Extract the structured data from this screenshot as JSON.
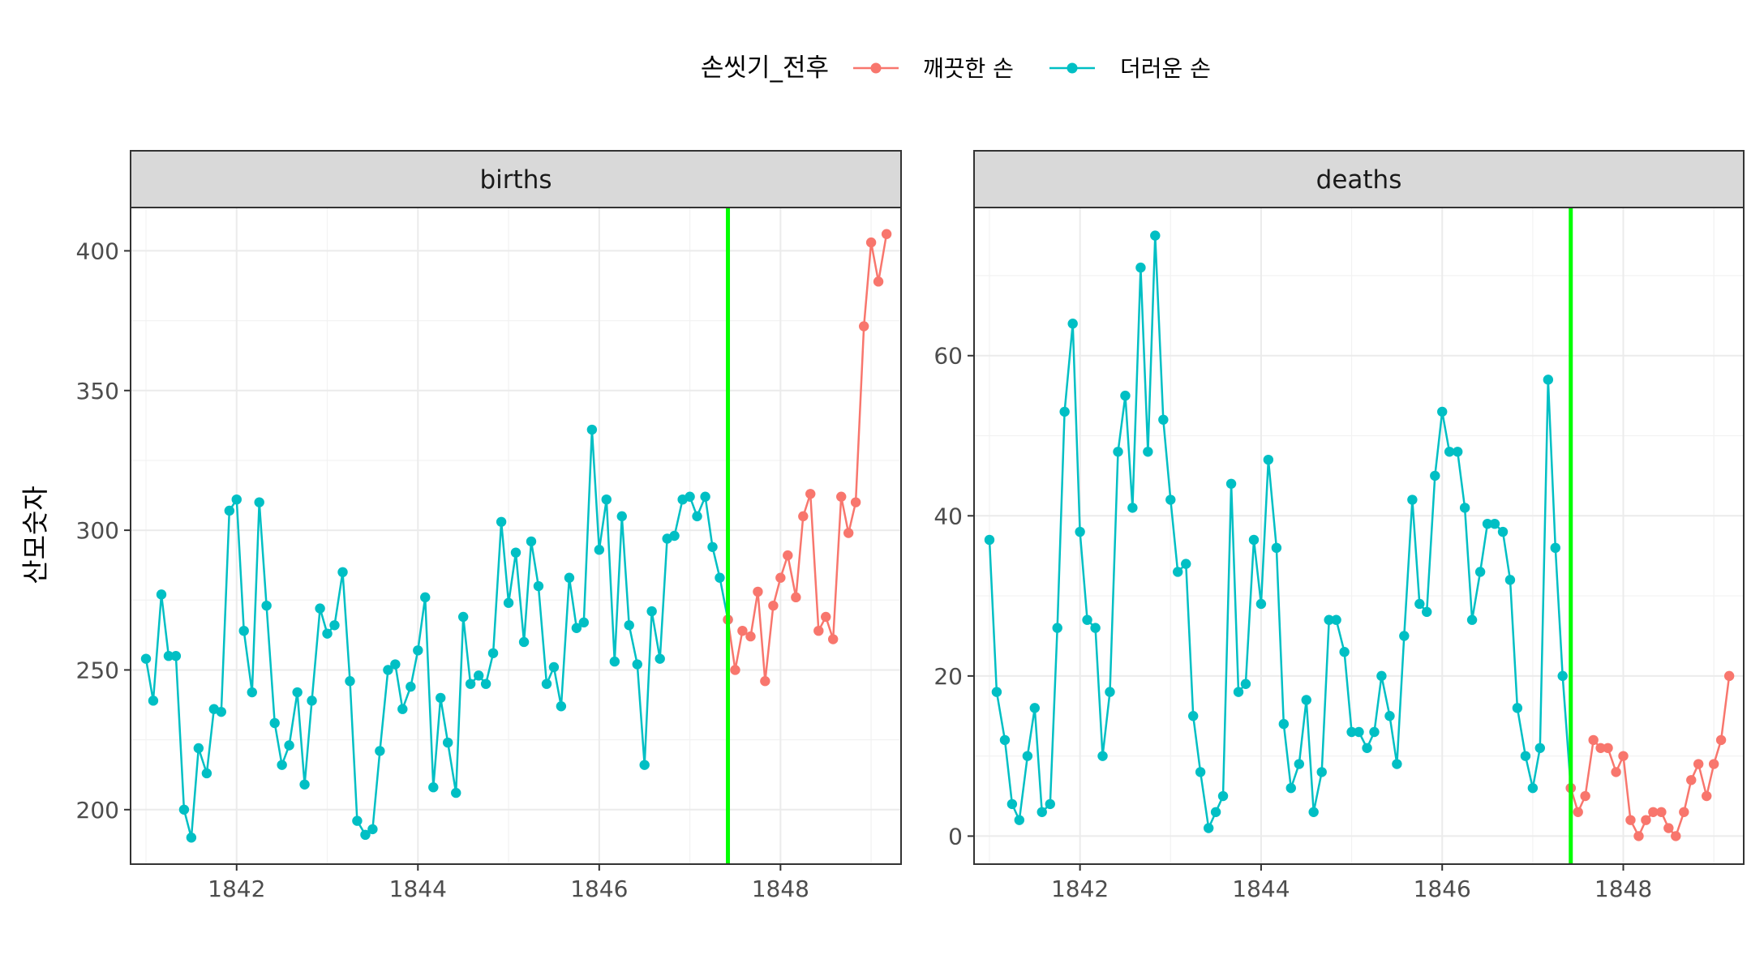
{
  "chart_data": {
    "type": "line",
    "legend": {
      "title": "손씻기_전후",
      "position": "top",
      "entries": [
        {
          "label": "깨끗한 손",
          "color": "#F8766D"
        },
        {
          "label": "더러운 손",
          "color": "#00BFC4"
        }
      ]
    },
    "ylabel": "산모숫자",
    "xlabel": "",
    "grid": true,
    "vline": {
      "x": 1847.42,
      "color": "#00FF00"
    },
    "x_ticks": [
      "1842",
      "1844",
      "1846",
      "1848"
    ],
    "panels": [
      {
        "title": "births",
        "xlim": [
          1840.83,
          1849.33
        ],
        "ylim": [
          180.5,
          415.5
        ],
        "y_ticks": [
          200,
          250,
          300,
          350,
          400
        ],
        "series": [
          {
            "name": "더러운 손",
            "color": "#00BFC4",
            "x": [
              1841.0,
              1841.08,
              1841.17,
              1841.25,
              1841.33,
              1841.42,
              1841.5,
              1841.58,
              1841.67,
              1841.75,
              1841.83,
              1841.92,
              1842.0,
              1842.08,
              1842.17,
              1842.25,
              1842.33,
              1842.42,
              1842.5,
              1842.58,
              1842.67,
              1842.75,
              1842.83,
              1842.92,
              1843.0,
              1843.08,
              1843.17,
              1843.25,
              1843.33,
              1843.42,
              1843.5,
              1843.58,
              1843.67,
              1843.75,
              1843.83,
              1843.92,
              1844.0,
              1844.08,
              1844.17,
              1844.25,
              1844.33,
              1844.42,
              1844.5,
              1844.58,
              1844.67,
              1844.75,
              1844.83,
              1844.92,
              1845.0,
              1845.08,
              1845.17,
              1845.25,
              1845.33,
              1845.42,
              1845.5,
              1845.58,
              1845.67,
              1845.75,
              1845.83,
              1845.92,
              1846.0,
              1846.08,
              1846.17,
              1846.25,
              1846.33,
              1846.42,
              1846.5,
              1846.58,
              1846.67,
              1846.75,
              1846.83,
              1846.92,
              1847.0,
              1847.08,
              1847.17,
              1847.25,
              1847.33,
              1847.42
            ],
            "values": [
              254,
              239,
              277,
              255,
              255,
              200,
              190,
              222,
              213,
              236,
              235,
              307,
              311,
              264,
              242,
              310,
              273,
              231,
              216,
              223,
              242,
              209,
              239,
              272,
              263,
              266,
              285,
              246,
              196,
              191,
              193,
              221,
              250,
              252,
              236,
              244,
              257,
              276,
              208,
              240,
              224,
              206,
              269,
              245,
              248,
              245,
              256,
              303,
              274,
              292,
              260,
              296,
              280,
              245,
              251,
              237,
              283,
              265,
              267,
              336,
              293,
              311,
              253,
              305,
              266,
              252,
              216,
              271,
              254,
              297,
              298,
              311,
              312,
              305,
              312,
              294,
              283,
              268
            ]
          },
          {
            "name": "깨끗한 손",
            "color": "#F8766D",
            "x": [
              1847.42,
              1847.5,
              1847.58,
              1847.67,
              1847.75,
              1847.83,
              1847.92,
              1848.0,
              1848.08,
              1848.17,
              1848.25,
              1848.33,
              1848.42,
              1848.5,
              1848.58,
              1848.67,
              1848.75,
              1848.83,
              1848.92,
              1849.0,
              1849.08,
              1849.17
            ],
            "values": [
              268,
              250,
              264,
              262,
              278,
              246,
              273,
              283,
              291,
              276,
              305,
              313,
              264,
              269,
              261,
              312,
              299,
              310,
              373,
              403,
              389,
              406
            ]
          }
        ]
      },
      {
        "title": "deaths",
        "xlim": [
          1840.83,
          1849.33
        ],
        "ylim": [
          -3.5,
          78.5
        ],
        "y_ticks": [
          0,
          20,
          40,
          60
        ],
        "series": [
          {
            "name": "더러운 손",
            "color": "#00BFC4",
            "x": [
              1841.0,
              1841.08,
              1841.17,
              1841.25,
              1841.33,
              1841.42,
              1841.5,
              1841.58,
              1841.67,
              1841.75,
              1841.83,
              1841.92,
              1842.0,
              1842.08,
              1842.17,
              1842.25,
              1842.33,
              1842.42,
              1842.5,
              1842.58,
              1842.67,
              1842.75,
              1842.83,
              1842.92,
              1843.0,
              1843.08,
              1843.17,
              1843.25,
              1843.33,
              1843.42,
              1843.5,
              1843.58,
              1843.67,
              1843.75,
              1843.83,
              1843.92,
              1844.0,
              1844.08,
              1844.17,
              1844.25,
              1844.33,
              1844.42,
              1844.5,
              1844.58,
              1844.67,
              1844.75,
              1844.83,
              1844.92,
              1845.0,
              1845.08,
              1845.17,
              1845.25,
              1845.33,
              1845.42,
              1845.5,
              1845.58,
              1845.67,
              1845.75,
              1845.83,
              1845.92,
              1846.0,
              1846.08,
              1846.17,
              1846.25,
              1846.33,
              1846.42,
              1846.5,
              1846.58,
              1846.67,
              1846.75,
              1846.83,
              1846.92,
              1847.0,
              1847.08,
              1847.17,
              1847.25,
              1847.33,
              1847.42
            ],
            "values": [
              37,
              18,
              12,
              4,
              2,
              10,
              16,
              3,
              4,
              26,
              53,
              64,
              38,
              27,
              26,
              10,
              18,
              48,
              55,
              41,
              71,
              48,
              75,
              52,
              42,
              33,
              34,
              15,
              8,
              1,
              3,
              5,
              44,
              18,
              19,
              37,
              29,
              47,
              36,
              14,
              6,
              9,
              17,
              3,
              8,
              27,
              27,
              23,
              13,
              13,
              11,
              13,
              20,
              15,
              9,
              25,
              42,
              29,
              28,
              45,
              53,
              48,
              48,
              41,
              27,
              33,
              39,
              39,
              38,
              32,
              16,
              10,
              6,
              11,
              57,
              36,
              20,
              6
            ]
          },
          {
            "name": "깨끗한 손",
            "color": "#F8766D",
            "x": [
              1847.42,
              1847.5,
              1847.58,
              1847.67,
              1847.75,
              1847.83,
              1847.92,
              1848.0,
              1848.08,
              1848.17,
              1848.25,
              1848.33,
              1848.42,
              1848.5,
              1848.58,
              1848.67,
              1848.75,
              1848.83,
              1848.92,
              1849.0,
              1849.08,
              1849.17
            ],
            "values": [
              6,
              3,
              5,
              12,
              11,
              11,
              8,
              10,
              2,
              0,
              2,
              3,
              3,
              1,
              0,
              3,
              7,
              9,
              5,
              9,
              12,
              20
            ]
          }
        ]
      }
    ]
  }
}
